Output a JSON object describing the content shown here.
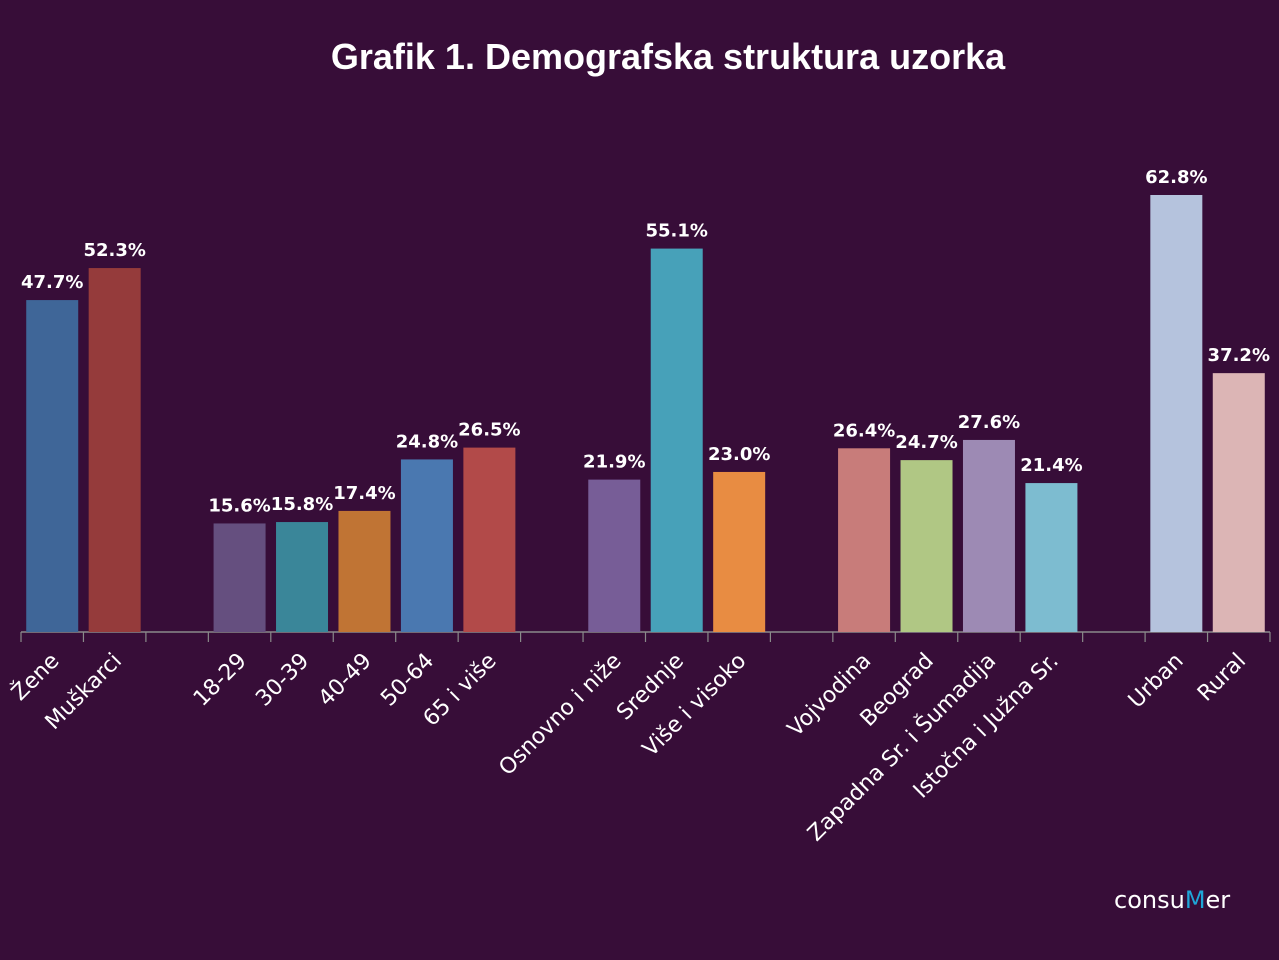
{
  "chart_data": {
    "type": "bar",
    "title": "Grafik 1. Demografska struktura uzorka",
    "xlabel": "",
    "ylabel": "",
    "ylim": [
      0,
      70
    ],
    "grid": false,
    "value_format": "percent, one decimal",
    "groups": [
      {
        "categories": [
          "Žene",
          "Muškarci"
        ],
        "values": [
          47.7,
          52.3
        ],
        "colors": [
          "#3f6698",
          "#953b3b"
        ]
      },
      {
        "categories": [
          "18-29",
          "30-39",
          "40-49",
          "50-64",
          "65 i više"
        ],
        "values": [
          15.6,
          15.8,
          17.4,
          24.8,
          26.5
        ],
        "colors": [
          "#654f7f",
          "#3a8699",
          "#c07434",
          "#4a78b0",
          "#b24a49"
        ]
      },
      {
        "categories": [
          "Osnovno i niže",
          "Srednje",
          "Više i visoko"
        ],
        "values": [
          21.9,
          55.1,
          23.0
        ],
        "colors": [
          "#775d97",
          "#47a1b9",
          "#e88c42"
        ]
      },
      {
        "categories": [
          "Vojvodina",
          "Beograd",
          "Zapadna Sr. i Šumadija",
          "Istočna i Južna Sr."
        ],
        "values": [
          26.4,
          24.7,
          27.6,
          21.4
        ],
        "colors": [
          "#c87c7a",
          "#b0c784",
          "#9d8ab4",
          "#7dbcd0"
        ]
      },
      {
        "categories": [
          "Urban",
          "Rural"
        ],
        "values": [
          62.8,
          37.2
        ],
        "colors": [
          "#b5c3dd",
          "#dcb5b5"
        ]
      }
    ],
    "data_labels": [
      "47.7%",
      "52.3%",
      "15.6%",
      "15.8%",
      "17.4%",
      "24.8%",
      "26.5%",
      "21.9%",
      "55.1%",
      "23.0%",
      "26.4%",
      "24.7%",
      "27.6%",
      "21.4%",
      "62.8%",
      "37.2%"
    ]
  },
  "logo": {
    "part1": "consu",
    "part2": "M",
    "part3": "er",
    "accent": "#1ea6d8"
  },
  "colors": {
    "background": "#370d38",
    "axis": "#8a8a8a",
    "text": "#ffffff"
  }
}
